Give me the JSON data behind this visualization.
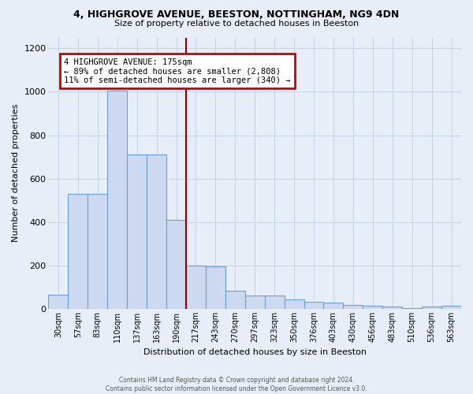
{
  "title1": "4, HIGHGROVE AVENUE, BEESTON, NOTTINGHAM, NG9 4DN",
  "title2": "Size of property relative to detached houses in Beeston",
  "xlabel": "Distribution of detached houses by size in Beeston",
  "ylabel": "Number of detached properties",
  "categories": [
    "30sqm",
    "57sqm",
    "83sqm",
    "110sqm",
    "137sqm",
    "163sqm",
    "190sqm",
    "217sqm",
    "243sqm",
    "270sqm",
    "297sqm",
    "323sqm",
    "350sqm",
    "376sqm",
    "403sqm",
    "430sqm",
    "456sqm",
    "483sqm",
    "510sqm",
    "536sqm",
    "563sqm"
  ],
  "values": [
    65,
    530,
    530,
    1005,
    710,
    710,
    410,
    200,
    195,
    85,
    62,
    62,
    45,
    32,
    28,
    20,
    15,
    10,
    2,
    10,
    15
  ],
  "bar_color": "#ccd9f0",
  "bar_edge_color": "#6a9fd8",
  "bar_width": 1.0,
  "ylim": [
    0,
    1250
  ],
  "yticks": [
    0,
    200,
    400,
    600,
    800,
    1000,
    1200
  ],
  "property_line_x": 6.5,
  "property_line_color": "#8b0000",
  "annotation_text1": "4 HIGHGROVE AVENUE: 175sqm",
  "annotation_text2": "← 89% of detached houses are smaller (2,808)",
  "annotation_text3": "11% of semi-detached houses are larger (340) →",
  "annotation_box_color": "#ffffff",
  "annotation_edge_color": "#cc0000",
  "footer1": "Contains HM Land Registry data © Crown copyright and database right 2024.",
  "footer2": "Contains public sector information licensed under the Open Government Licence v3.0.",
  "background_color": "#e8eef8",
  "plot_background_color": "#e8eef8",
  "grid_color": "#c8d4e8"
}
